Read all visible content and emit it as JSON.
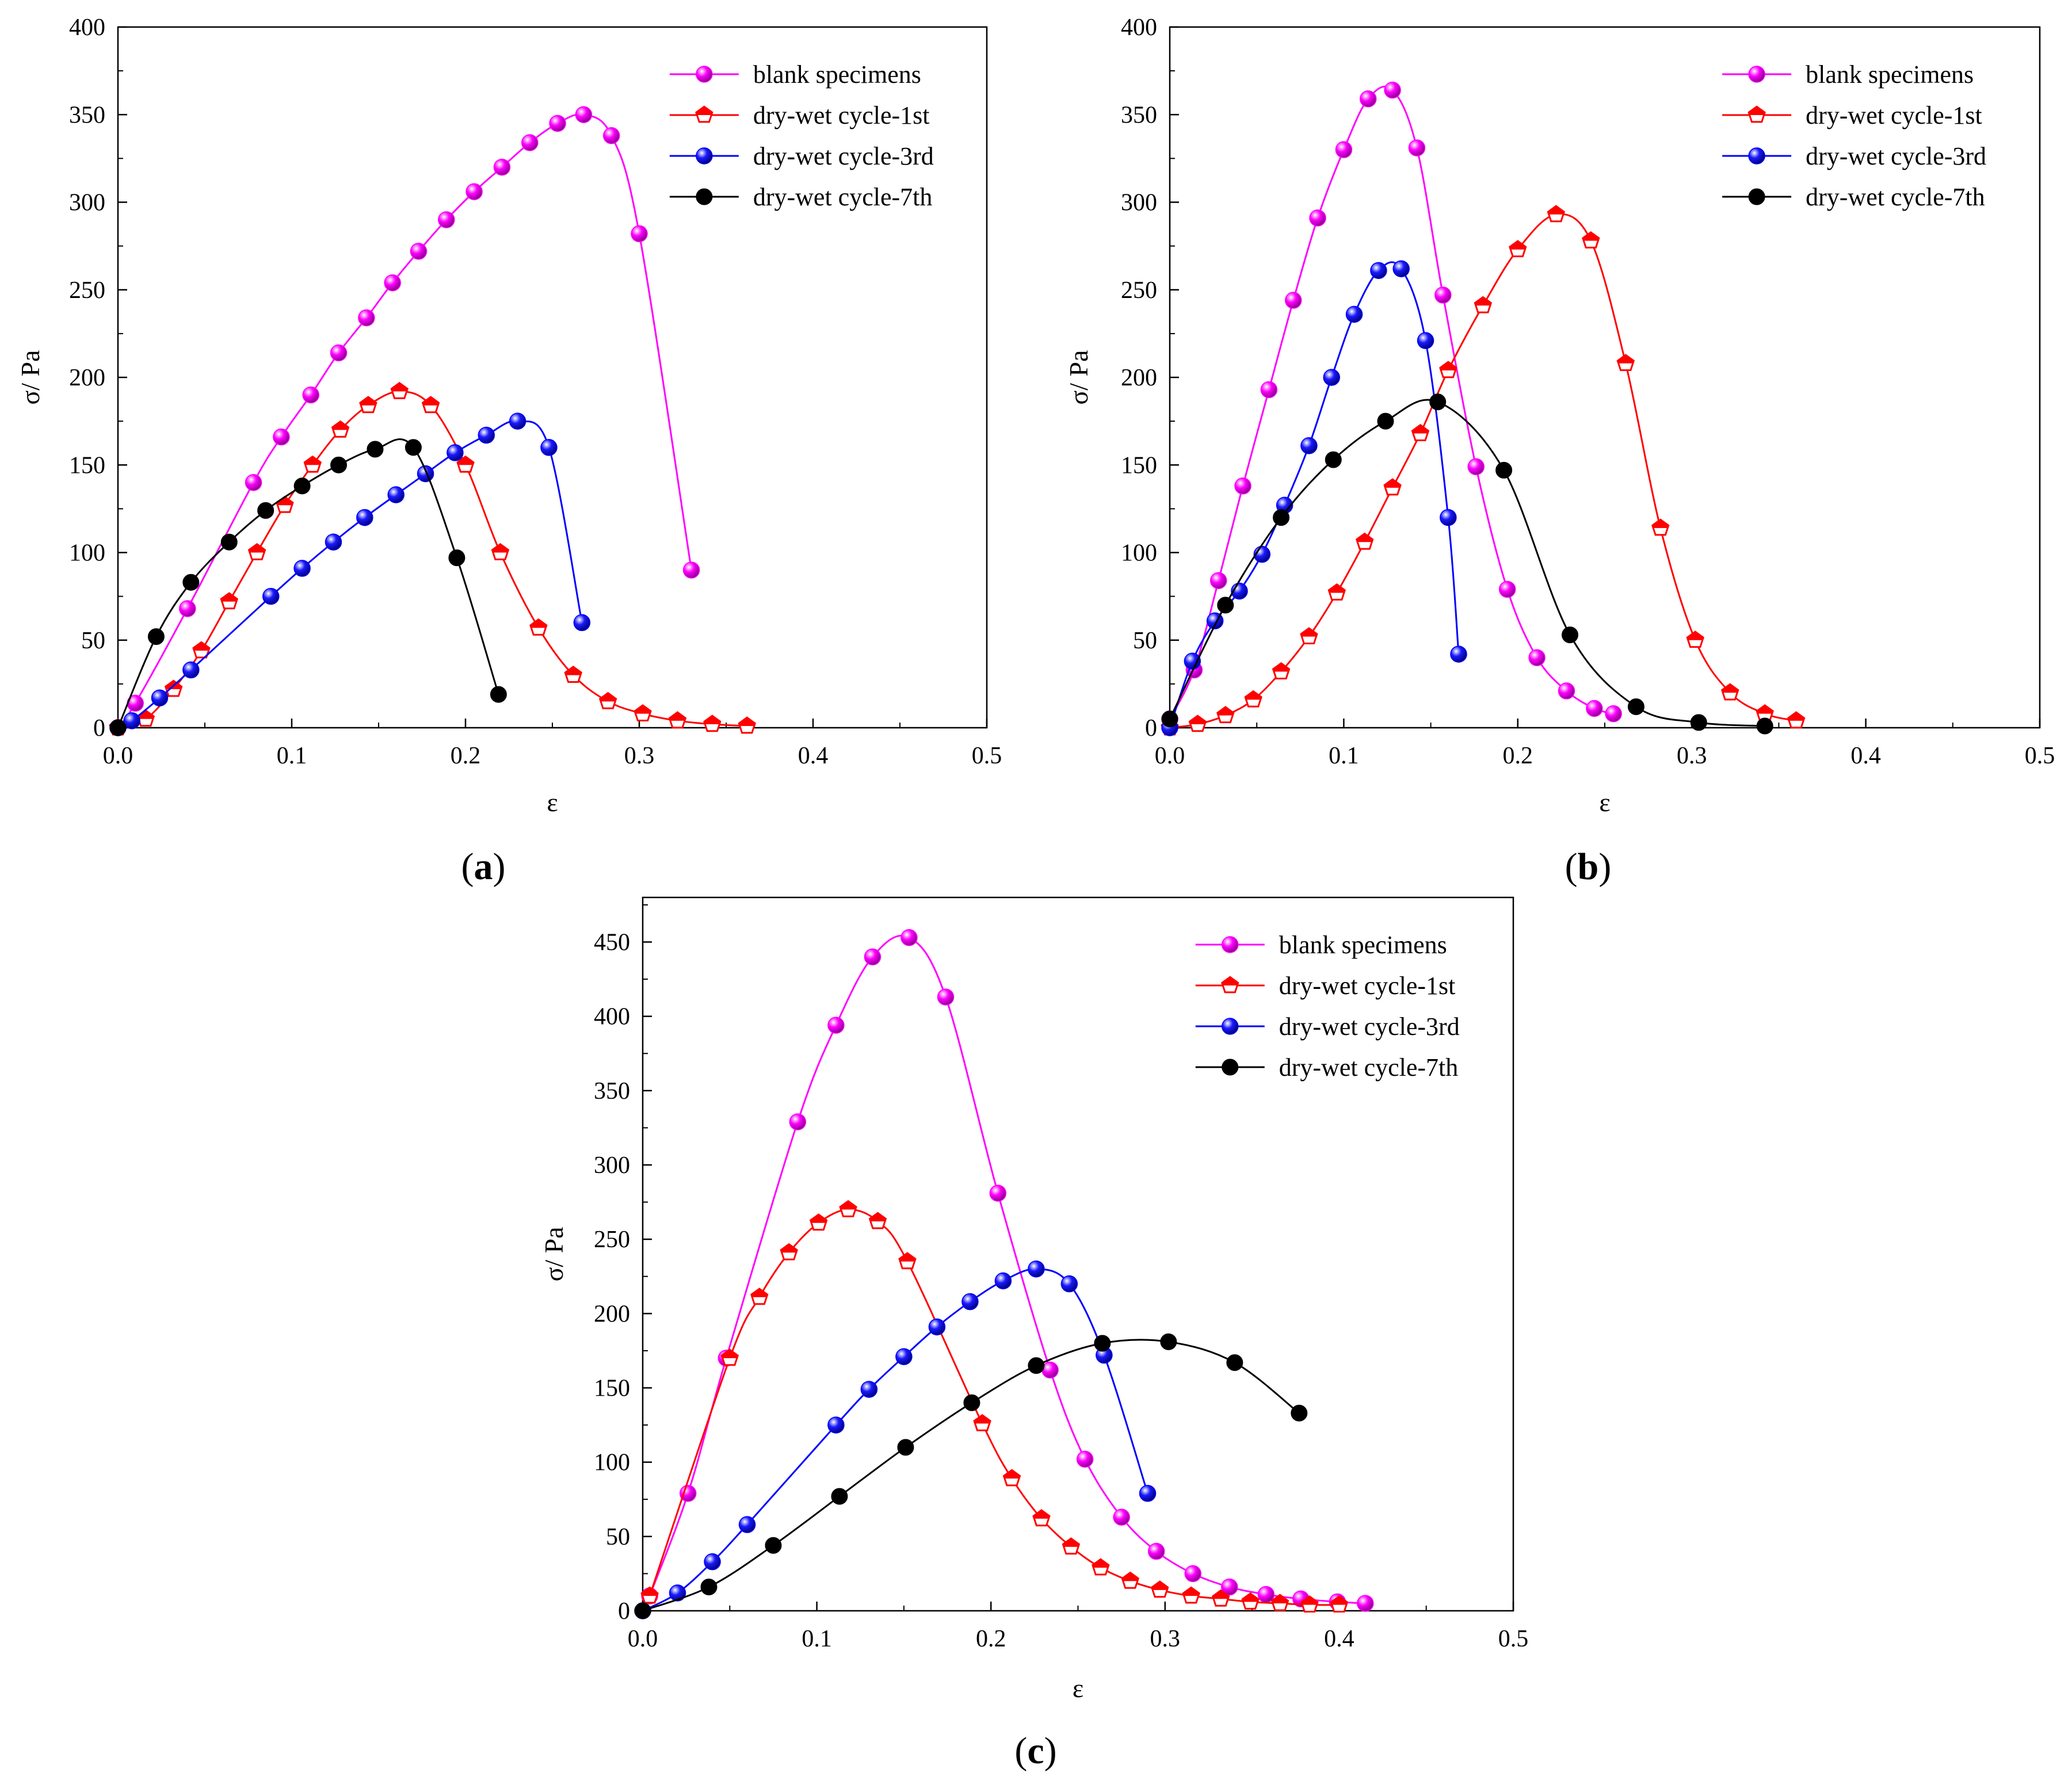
{
  "chart_data": [
    {
      "panel": "(a)",
      "panel_letter": "a",
      "type": "line",
      "xlabel": "ε",
      "ylabel": "σ/ Pa",
      "xlim": [
        0,
        0.5
      ],
      "ylim": [
        0,
        400
      ],
      "xticks": [
        0,
        0.1,
        0.2,
        0.3,
        0.4,
        0.5
      ],
      "xtick_labels": [
        "0.0",
        "0.1",
        "0.2",
        "0.3",
        "0.4",
        "0.5"
      ],
      "yticks": [
        0,
        50,
        100,
        150,
        200,
        250,
        300,
        350,
        400
      ],
      "ytick_labels": [
        "0",
        "50",
        "100",
        "150",
        "200",
        "250",
        "300",
        "350",
        "400"
      ],
      "legend_position": "top-right",
      "series": [
        {
          "name": "blank specimens",
          "color": "#ff00ff",
          "marker": "sphere",
          "points": [
            [
              0.0,
              0
            ],
            [
              0.01,
              14
            ],
            [
              0.04,
              68
            ],
            [
              0.078,
              140
            ],
            [
              0.094,
              166
            ],
            [
              0.111,
              190
            ],
            [
              0.127,
              214
            ],
            [
              0.143,
              234
            ],
            [
              0.158,
              254
            ],
            [
              0.173,
              272
            ],
            [
              0.189,
              290
            ],
            [
              0.205,
              306
            ],
            [
              0.221,
              320
            ],
            [
              0.237,
              334
            ],
            [
              0.253,
              345
            ],
            [
              0.268,
              350
            ],
            [
              0.284,
              338
            ],
            [
              0.3,
              282
            ],
            [
              0.33,
              90
            ]
          ]
        },
        {
          "name": "dry-wet cycle-1st",
          "color": "#ff0000",
          "marker": "pentagon",
          "points": [
            [
              0.0,
              0
            ],
            [
              0.016,
              5
            ],
            [
              0.032,
              22
            ],
            [
              0.048,
              44
            ],
            [
              0.064,
              72
            ],
            [
              0.08,
              100
            ],
            [
              0.096,
              127
            ],
            [
              0.112,
              150
            ],
            [
              0.128,
              170
            ],
            [
              0.144,
              184
            ],
            [
              0.162,
              192
            ],
            [
              0.18,
              184
            ],
            [
              0.2,
              150
            ],
            [
              0.22,
              100
            ],
            [
              0.242,
              57
            ],
            [
              0.262,
              30
            ],
            [
              0.282,
              15
            ],
            [
              0.302,
              8
            ],
            [
              0.322,
              4
            ],
            [
              0.342,
              2
            ],
            [
              0.362,
              1
            ]
          ]
        },
        {
          "name": "dry-wet cycle-3rd",
          "color": "#0000ff",
          "marker": "sphere",
          "points": [
            [
              0.0,
              0
            ],
            [
              0.008,
              4
            ],
            [
              0.024,
              17
            ],
            [
              0.042,
              33
            ],
            [
              0.088,
              75
            ],
            [
              0.106,
              91
            ],
            [
              0.124,
              106
            ],
            [
              0.142,
              120
            ],
            [
              0.16,
              133
            ],
            [
              0.177,
              145
            ],
            [
              0.194,
              157
            ],
            [
              0.212,
              167
            ],
            [
              0.23,
              175
            ],
            [
              0.248,
              160
            ],
            [
              0.267,
              60
            ]
          ]
        },
        {
          "name": "dry-wet cycle-7th",
          "color": "#000000",
          "marker": "filled-circle",
          "points": [
            [
              0.0,
              0
            ],
            [
              0.022,
              52
            ],
            [
              0.042,
              83
            ],
            [
              0.064,
              106
            ],
            [
              0.085,
              124
            ],
            [
              0.106,
              138
            ],
            [
              0.127,
              150
            ],
            [
              0.148,
              159
            ],
            [
              0.17,
              160
            ],
            [
              0.195,
              97
            ],
            [
              0.219,
              19
            ]
          ]
        }
      ]
    },
    {
      "panel": "(b)",
      "panel_letter": "b",
      "type": "line",
      "xlabel": "ε",
      "ylabel": "σ/ Pa",
      "xlim": [
        0,
        0.5
      ],
      "ylim": [
        0,
        400
      ],
      "xticks": [
        0,
        0.1,
        0.2,
        0.3,
        0.4,
        0.5
      ],
      "xtick_labels": [
        "0.0",
        "0.1",
        "0.2",
        "0.3",
        "0.4",
        "0.5"
      ],
      "yticks": [
        0,
        50,
        100,
        150,
        200,
        250,
        300,
        350,
        400
      ],
      "ytick_labels": [
        "0",
        "50",
        "100",
        "150",
        "200",
        "250",
        "300",
        "350",
        "400"
      ],
      "legend_position": "top-right",
      "series": [
        {
          "name": "blank specimens",
          "color": "#ff00ff",
          "marker": "sphere",
          "points": [
            [
              0.0,
              5
            ],
            [
              0.014,
              33
            ],
            [
              0.028,
              84
            ],
            [
              0.042,
              138
            ],
            [
              0.057,
              193
            ],
            [
              0.071,
              244
            ],
            [
              0.085,
              291
            ],
            [
              0.1,
              330
            ],
            [
              0.114,
              359
            ],
            [
              0.128,
              364
            ],
            [
              0.142,
              331
            ],
            [
              0.157,
              247
            ],
            [
              0.176,
              149
            ],
            [
              0.194,
              79
            ],
            [
              0.211,
              40
            ],
            [
              0.228,
              21
            ],
            [
              0.244,
              11
            ],
            [
              0.255,
              8
            ]
          ]
        },
        {
          "name": "dry-wet cycle-1st",
          "color": "#ff0000",
          "marker": "pentagon",
          "points": [
            [
              0.0,
              0
            ],
            [
              0.016,
              2
            ],
            [
              0.032,
              7
            ],
            [
              0.048,
              16
            ],
            [
              0.064,
              32
            ],
            [
              0.08,
              52
            ],
            [
              0.096,
              77
            ],
            [
              0.112,
              106
            ],
            [
              0.128,
              137
            ],
            [
              0.144,
              168
            ],
            [
              0.16,
              204
            ],
            [
              0.18,
              241
            ],
            [
              0.2,
              273
            ],
            [
              0.222,
              293
            ],
            [
              0.242,
              278
            ],
            [
              0.262,
              208
            ],
            [
              0.282,
              114
            ],
            [
              0.302,
              50
            ],
            [
              0.322,
              20
            ],
            [
              0.342,
              8
            ],
            [
              0.36,
              4
            ]
          ]
        },
        {
          "name": "dry-wet cycle-3rd",
          "color": "#0000ff",
          "marker": "sphere",
          "points": [
            [
              0.0,
              0
            ],
            [
              0.013,
              38
            ],
            [
              0.026,
              61
            ],
            [
              0.04,
              78
            ],
            [
              0.053,
              99
            ],
            [
              0.066,
              127
            ],
            [
              0.08,
              161
            ],
            [
              0.093,
              200
            ],
            [
              0.106,
              236
            ],
            [
              0.12,
              261
            ],
            [
              0.133,
              262
            ],
            [
              0.147,
              221
            ],
            [
              0.16,
              120
            ],
            [
              0.166,
              42
            ]
          ]
        },
        {
          "name": "dry-wet cycle-7th",
          "color": "#000000",
          "marker": "filled-circle",
          "points": [
            [
              0.0,
              5
            ],
            [
              0.032,
              70
            ],
            [
              0.064,
              120
            ],
            [
              0.094,
              153
            ],
            [
              0.124,
              175
            ],
            [
              0.154,
              186
            ],
            [
              0.192,
              147
            ],
            [
              0.23,
              53
            ],
            [
              0.268,
              12
            ],
            [
              0.304,
              3
            ],
            [
              0.342,
              1
            ]
          ]
        }
      ]
    },
    {
      "panel": "(c)",
      "panel_letter": "c",
      "type": "line",
      "xlabel": "ε",
      "ylabel": "σ/ Pa",
      "xlim": [
        0,
        0.5
      ],
      "ylim": [
        0,
        480
      ],
      "xticks": [
        0,
        0.1,
        0.2,
        0.3,
        0.4,
        0.5
      ],
      "xtick_labels": [
        "0.0",
        "0.1",
        "0.2",
        "0.3",
        "0.4",
        "0.5"
      ],
      "yticks": [
        0,
        50,
        100,
        150,
        200,
        250,
        300,
        350,
        400,
        450
      ],
      "ytick_labels": [
        "0",
        "50",
        "100",
        "150",
        "200",
        "250",
        "300",
        "350",
        "400",
        "450"
      ],
      "legend_position": "top-right",
      "series": [
        {
          "name": "blank specimens",
          "color": "#ff00ff",
          "marker": "sphere",
          "points": [
            [
              0.004,
              10
            ],
            [
              0.026,
              79
            ],
            [
              0.048,
              170
            ],
            [
              0.089,
              329
            ],
            [
              0.111,
              394
            ],
            [
              0.132,
              440
            ],
            [
              0.153,
              453
            ],
            [
              0.174,
              413
            ],
            [
              0.204,
              281
            ],
            [
              0.234,
              162
            ],
            [
              0.254,
              102
            ],
            [
              0.275,
              63
            ],
            [
              0.295,
              40
            ],
            [
              0.316,
              25
            ],
            [
              0.337,
              16
            ],
            [
              0.358,
              11
            ],
            [
              0.378,
              8
            ],
            [
              0.399,
              6
            ],
            [
              0.415,
              5
            ]
          ]
        },
        {
          "name": "dry-wet cycle-1st",
          "color": "#ff0000",
          "marker": "pentagon",
          "points": [
            [
              0.004,
              10
            ],
            [
              0.05,
              170
            ],
            [
              0.067,
              211
            ],
            [
              0.084,
              241
            ],
            [
              0.101,
              261
            ],
            [
              0.118,
              270
            ],
            [
              0.135,
              262
            ],
            [
              0.152,
              235
            ],
            [
              0.195,
              126
            ],
            [
              0.212,
              89
            ],
            [
              0.229,
              62
            ],
            [
              0.246,
              43
            ],
            [
              0.263,
              29
            ],
            [
              0.28,
              20
            ],
            [
              0.297,
              14
            ],
            [
              0.315,
              10
            ],
            [
              0.332,
              8
            ],
            [
              0.349,
              6
            ],
            [
              0.366,
              5
            ],
            [
              0.383,
              4
            ],
            [
              0.4,
              4
            ]
          ]
        },
        {
          "name": "dry-wet cycle-3rd",
          "color": "#0000ff",
          "marker": "sphere",
          "points": [
            [
              0.0,
              0
            ],
            [
              0.02,
              12
            ],
            [
              0.04,
              33
            ],
            [
              0.06,
              58
            ],
            [
              0.111,
              125
            ],
            [
              0.13,
              149
            ],
            [
              0.15,
              171
            ],
            [
              0.169,
              191
            ],
            [
              0.188,
              208
            ],
            [
              0.207,
              222
            ],
            [
              0.226,
              230
            ],
            [
              0.245,
              220
            ],
            [
              0.265,
              172
            ],
            [
              0.29,
              79
            ]
          ]
        },
        {
          "name": "dry-wet cycle-7th",
          "color": "#000000",
          "marker": "filled-circle",
          "points": [
            [
              0.0,
              0
            ],
            [
              0.038,
              16
            ],
            [
              0.075,
              44
            ],
            [
              0.113,
              77
            ],
            [
              0.151,
              110
            ],
            [
              0.189,
              140
            ],
            [
              0.226,
              165
            ],
            [
              0.264,
              180
            ],
            [
              0.302,
              181
            ],
            [
              0.34,
              167
            ],
            [
              0.377,
              133
            ]
          ]
        }
      ]
    }
  ]
}
